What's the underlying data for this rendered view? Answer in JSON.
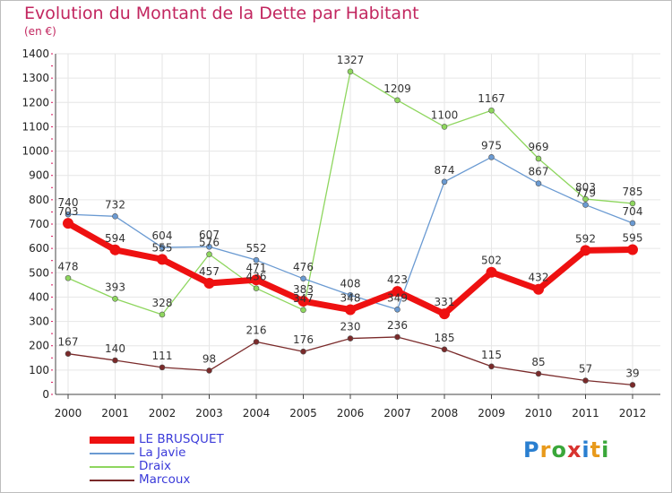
{
  "title": "Evolution du Montant de la Dette par Habitant",
  "unit": "(en €)",
  "logo": "Proxiti",
  "colors": {
    "title": "#c2265f",
    "axis": "#444444",
    "grid": "#e6e6e6",
    "legend_text": "#3b3bd9",
    "tick_marks": "#d9145a"
  },
  "chart_data": {
    "type": "line",
    "x": [
      "2000",
      "2001",
      "2002",
      "2003",
      "2004",
      "2005",
      "2006",
      "2007",
      "2008",
      "2009",
      "2010",
      "2011",
      "2012"
    ],
    "ylim": [
      0,
      1400
    ],
    "yticks": [
      0,
      100,
      200,
      300,
      400,
      500,
      600,
      700,
      800,
      900,
      1000,
      1100,
      1200,
      1300,
      1400
    ],
    "grid": true,
    "legend_position": "bottom-left",
    "series": [
      {
        "name": "LE BRUSQUET",
        "color": "#ee1111",
        "values": [
          703,
          594,
          555,
          457,
          471,
          383,
          348,
          423,
          331,
          502,
          432,
          592,
          595
        ]
      },
      {
        "name": "La Javie",
        "color": "#6a9ad2",
        "values": [
          740,
          732,
          604,
          607,
          552,
          476,
          408,
          349,
          874,
          975,
          867,
          779,
          704
        ]
      },
      {
        "name": "Draix",
        "color": "#8ed65e",
        "values": [
          478,
          393,
          328,
          576,
          436,
          347,
          1327,
          1209,
          1100,
          1167,
          969,
          803,
          785
        ]
      },
      {
        "name": "Marcoux",
        "color": "#7a2a2a",
        "values": [
          167,
          140,
          111,
          98,
          216,
          176,
          230,
          236,
          185,
          115,
          85,
          57,
          39
        ]
      }
    ]
  }
}
